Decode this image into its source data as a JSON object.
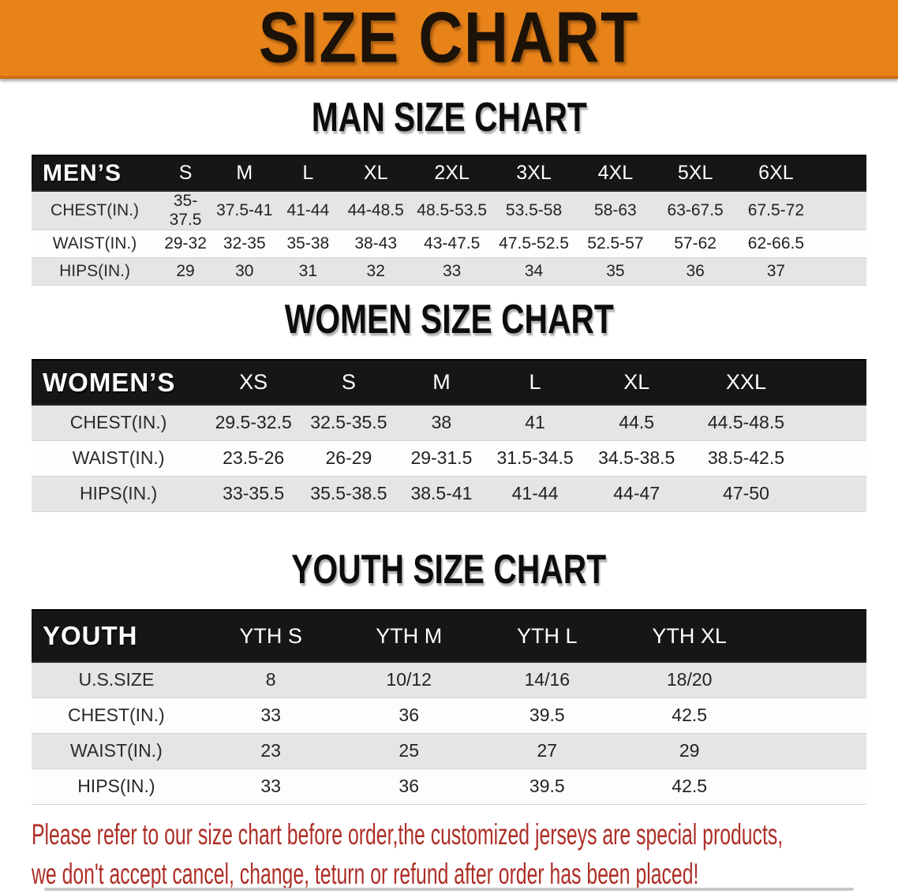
{
  "banner": {
    "title": "SIZE CHART"
  },
  "sections": [
    {
      "id": "men",
      "heading": "MAN SIZE CHART",
      "group_label": "MEN’S",
      "columns": [
        "S",
        "M",
        "L",
        "XL",
        "2XL",
        "3XL",
        "4XL",
        "5XL",
        "6XL"
      ],
      "rows": [
        {
          "label": "CHEST(IN.)",
          "values": [
            "35-37.5",
            "37.5-41",
            "41-44",
            "44-48.5",
            "48.5-53.5",
            "53.5-58",
            "58-63",
            "63-67.5",
            "67.5-72"
          ]
        },
        {
          "label": "WAIST(IN.)",
          "values": [
            "29-32",
            "32-35",
            "35-38",
            "38-43",
            "43-47.5",
            "47.5-52.5",
            "52.5-57",
            "57-62",
            "62-66.5"
          ]
        },
        {
          "label": "HIPS(IN.)",
          "values": [
            "29",
            "30",
            "31",
            "32",
            "33",
            "34",
            "35",
            "36",
            "37"
          ]
        }
      ]
    },
    {
      "id": "women",
      "heading": "WOMEN SIZE CHART",
      "group_label": "WOMEN’S",
      "columns": [
        "XS",
        "S",
        "M",
        "L",
        "XL",
        "XXL"
      ],
      "rows": [
        {
          "label": "CHEST(IN.)",
          "values": [
            "29.5-32.5",
            "32.5-35.5",
            "38",
            "41",
            "44.5",
            "44.5-48.5"
          ]
        },
        {
          "label": "WAIST(IN.)",
          "values": [
            "23.5-26",
            "26-29",
            "29-31.5",
            "31.5-34.5",
            "34.5-38.5",
            "38.5-42.5"
          ]
        },
        {
          "label": "HIPS(IN.)",
          "values": [
            "33-35.5",
            "35.5-38.5",
            "38.5-41",
            "41-44",
            "44-47",
            "47-50"
          ]
        }
      ]
    },
    {
      "id": "youth",
      "heading": "YOUTH SIZE CHART",
      "group_label": "YOUTH",
      "columns": [
        "YTH S",
        "YTH M",
        "YTH L",
        "YTH XL"
      ],
      "rows": [
        {
          "label": "U.S.SIZE",
          "values": [
            "8",
            "10/12",
            "14/16",
            "18/20"
          ]
        },
        {
          "label": "CHEST(IN.)",
          "values": [
            "33",
            "36",
            "39.5",
            "42.5"
          ]
        },
        {
          "label": "WAIST(IN.)",
          "values": [
            "23",
            "25",
            "27",
            "29"
          ]
        },
        {
          "label": "HIPS(IN.)",
          "values": [
            "33",
            "36",
            "39.5",
            "42.5"
          ]
        }
      ]
    }
  ],
  "disclaimer": {
    "line1": "Please refer to our size chart before order,the customized jerseys are special products,",
    "line2": "we don't accept cancel, change, teturn or refund after order has been placed!"
  },
  "colors": {
    "banner_bg": "#e8831a",
    "banner_text": "#1c1208",
    "bar_bg": "#161614",
    "row_gray": "#e5e5e5",
    "row_white": "#fdfdfd",
    "disclaimer_red": "#ad2e26"
  }
}
